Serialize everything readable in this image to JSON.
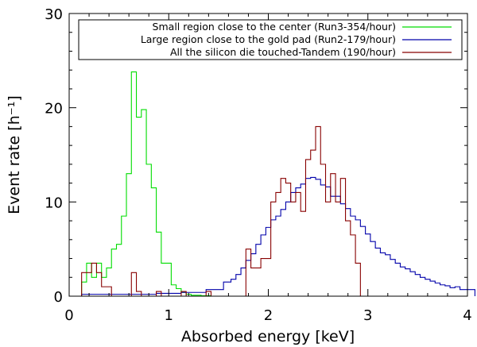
{
  "chart_data": {
    "type": "line",
    "title": "",
    "xlabel": "Absorbed energy [keV]",
    "ylabel": "Event rate [h⁻¹]",
    "xlim": [
      0,
      4
    ],
    "ylim": [
      0,
      30
    ],
    "xticks": [
      0,
      1,
      2,
      3,
      4
    ],
    "yticks": [
      0,
      10,
      20,
      30
    ],
    "grid": false,
    "legend_position": "top-right",
    "series": [
      {
        "name": "Small region close to the center (Run3-354/hour)",
        "color": "#00dd00",
        "step": true,
        "x": [
          0.15,
          0.2,
          0.25,
          0.3,
          0.35,
          0.4,
          0.45,
          0.5,
          0.55,
          0.6,
          0.65,
          0.7,
          0.75,
          0.8,
          0.85,
          0.9,
          0.95,
          1.0,
          1.05,
          1.1,
          1.15,
          1.2,
          1.25,
          1.3,
          1.35,
          1.4,
          1.45,
          1.5,
          1.55,
          1.6
        ],
        "y": [
          1.5,
          3.5,
          2.0,
          3.5,
          2.0,
          3.0,
          5.0,
          5.5,
          8.5,
          13.0,
          23.8,
          19.0,
          19.8,
          14.0,
          11.5,
          6.8,
          3.5,
          3.5,
          1.2,
          0.8,
          0.4,
          0.2,
          0.1,
          0.1,
          0.05,
          0.05,
          0.0,
          0.0,
          0.0,
          0.0
        ]
      },
      {
        "name": "Large region close to the gold pad (Run2-179/hour)",
        "color": "#0000aa",
        "step": true,
        "x": [
          0.25,
          0.5,
          0.75,
          1.0,
          1.25,
          1.5,
          1.6,
          1.65,
          1.7,
          1.75,
          1.8,
          1.85,
          1.9,
          1.95,
          2.0,
          2.05,
          2.1,
          2.15,
          2.2,
          2.25,
          2.3,
          2.35,
          2.4,
          2.45,
          2.5,
          2.55,
          2.6,
          2.65,
          2.7,
          2.75,
          2.8,
          2.85,
          2.9,
          2.95,
          3.0,
          3.05,
          3.1,
          3.15,
          3.2,
          3.25,
          3.3,
          3.35,
          3.4,
          3.45,
          3.5,
          3.55,
          3.6,
          3.65,
          3.7,
          3.75,
          3.8,
          3.85,
          3.9,
          3.95
        ],
        "y": [
          0.2,
          0.2,
          0.2,
          0.3,
          0.4,
          0.7,
          1.5,
          1.8,
          2.3,
          3.0,
          3.8,
          4.5,
          5.5,
          6.5,
          7.3,
          8.1,
          8.5,
          9.2,
          10.0,
          11.0,
          11.5,
          11.9,
          12.5,
          12.6,
          12.4,
          11.8,
          11.6,
          10.6,
          10.6,
          9.8,
          9.3,
          8.5,
          8.1,
          7.4,
          6.6,
          5.8,
          5.1,
          4.6,
          4.4,
          3.9,
          3.5,
          3.1,
          2.9,
          2.6,
          2.3,
          2.0,
          1.8,
          1.6,
          1.4,
          1.2,
          1.1,
          0.9,
          1.0,
          0.7
        ]
      },
      {
        "name": "All the silicon die touched-Tandem (190/hour)",
        "color": "#880000",
        "step": true,
        "x": [
          0.15,
          0.2,
          0.25,
          0.3,
          0.35,
          0.4,
          0.45,
          0.5,
          0.55,
          0.6,
          0.65,
          0.7,
          0.75,
          0.8,
          0.85,
          0.9,
          0.95,
          1.0,
          1.05,
          1.1,
          1.15,
          1.2,
          1.25,
          1.3,
          1.35,
          1.4,
          1.45,
          1.5,
          1.55,
          1.6,
          1.65,
          1.7,
          1.75,
          1.8,
          1.85,
          1.9,
          1.95,
          2.0,
          2.05,
          2.1,
          2.15,
          2.2,
          2.25,
          2.3,
          2.35,
          2.4,
          2.45,
          2.5,
          2.55,
          2.6,
          2.65,
          2.7,
          2.75,
          2.8,
          2.85,
          2.9
        ],
        "y": [
          2.5,
          2.5,
          3.5,
          2.5,
          1.0,
          1.0,
          0.0,
          0.0,
          0.0,
          0.0,
          2.5,
          0.5,
          0.0,
          0.0,
          0.0,
          0.5,
          0.0,
          0.0,
          0.0,
          0.0,
          0.5,
          0.0,
          0.0,
          0.0,
          0.0,
          0.5,
          0.0,
          0.0,
          0.0,
          0.0,
          0.0,
          0.0,
          0.0,
          5.0,
          3.0,
          3.0,
          4.0,
          4.0,
          10.0,
          11.0,
          12.5,
          12.0,
          10.0,
          11.0,
          9.0,
          14.5,
          15.5,
          18.0,
          14.0,
          10.0,
          13.0,
          10.0,
          12.5,
          8.0,
          6.5,
          3.5
        ]
      }
    ]
  }
}
